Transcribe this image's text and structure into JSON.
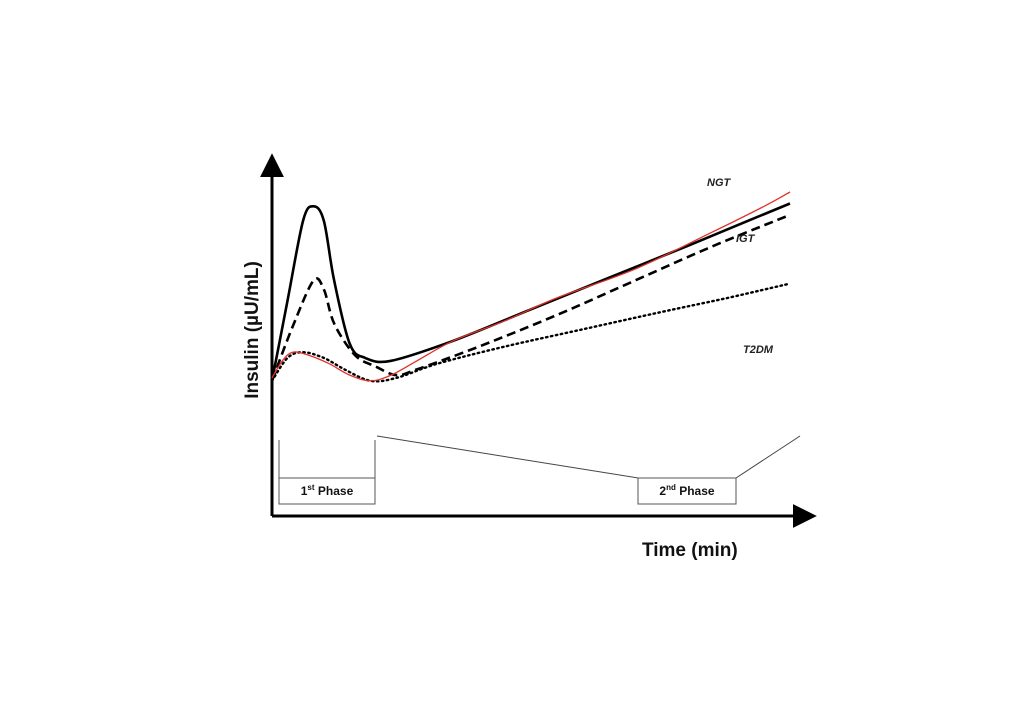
{
  "chart_data": {
    "type": "line",
    "title": "",
    "xlabel": "Time (min)",
    "ylabel": "Insulin (µU/mL)",
    "axis_ticks": "none",
    "grid": false,
    "legend": "inline labels at line ends",
    "accent_color": "#e0302a",
    "series": [
      {
        "name": "NGT",
        "style": "solid",
        "color": "#000000",
        "points": [
          [
            0,
            20
          ],
          [
            3,
            48
          ],
          [
            6,
            76
          ],
          [
            8,
            81
          ],
          [
            10,
            76
          ],
          [
            12,
            55
          ],
          [
            15,
            33
          ],
          [
            18,
            28
          ],
          [
            23,
            27
          ],
          [
            35,
            34
          ],
          [
            50,
            45
          ],
          [
            65,
            56
          ],
          [
            80,
            67
          ],
          [
            92,
            76
          ],
          [
            100,
            82
          ]
        ]
      },
      {
        "name": "IGT",
        "style": "dashed",
        "color": "#000000",
        "points": [
          [
            0,
            20
          ],
          [
            4,
            39
          ],
          [
            8,
            55
          ],
          [
            10,
            52
          ],
          [
            12,
            40
          ],
          [
            16,
            29
          ],
          [
            20,
            25
          ],
          [
            24,
            22
          ],
          [
            28,
            24
          ],
          [
            40,
            32
          ],
          [
            55,
            43
          ],
          [
            70,
            55
          ],
          [
            85,
            67
          ],
          [
            100,
            78
          ]
        ]
      },
      {
        "name": "T2DM",
        "style": "dotted",
        "color": "#000000",
        "points": [
          [
            0,
            20
          ],
          [
            3,
            28
          ],
          [
            6,
            30
          ],
          [
            10,
            28
          ],
          [
            14,
            24
          ],
          [
            19,
            20
          ],
          [
            24,
            21
          ],
          [
            32,
            26
          ],
          [
            45,
            32
          ],
          [
            60,
            38
          ],
          [
            75,
            44
          ],
          [
            88,
            49
          ],
          [
            100,
            54
          ]
        ]
      },
      {
        "name": "",
        "style": "solid-thin",
        "color": "#e0302a",
        "points": [
          [
            0,
            21
          ],
          [
            2,
            27
          ],
          [
            4,
            30
          ],
          [
            7,
            29
          ],
          [
            11,
            26
          ],
          [
            15,
            22
          ],
          [
            19,
            20
          ],
          [
            23,
            22
          ],
          [
            28,
            27
          ],
          [
            35,
            34
          ],
          [
            45,
            41
          ],
          [
            55,
            49
          ],
          [
            70,
            59
          ],
          [
            85,
            72
          ],
          [
            95,
            81
          ],
          [
            100,
            86
          ]
        ]
      }
    ],
    "annotations": [
      {
        "type": "box",
        "label_base": "1",
        "label_sup": "st",
        "label_rest": " Phase",
        "x_range": [
          0,
          19
        ]
      },
      {
        "type": "box",
        "label_base": "2",
        "label_sup": "nd",
        "label_rest": " Phase",
        "x_range": [
          20,
          100
        ]
      }
    ],
    "xlim": [
      0,
      100
    ],
    "ylim": [
      0,
      100
    ]
  }
}
